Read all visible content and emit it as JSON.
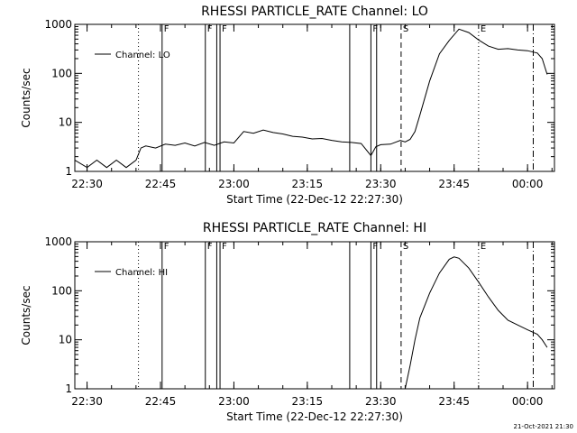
{
  "chart_data": [
    {
      "type": "line",
      "title": "RHESSI PARTICLE_RATE Channel: LO",
      "xlabel": "Start Time (22-Dec-12 22:27:30)",
      "ylabel": "Counts/sec",
      "yscale": "log",
      "ylim": [
        1,
        1000
      ],
      "xlim": [
        "22:27:30",
        "00:05:30"
      ],
      "x_ticks": [
        "22:30",
        "22:45",
        "23:00",
        "23:15",
        "23:30",
        "23:45",
        "00:00"
      ],
      "y_ticks": [
        "1",
        "10",
        "100",
        "1000"
      ],
      "legend": {
        "text": "Channel: LO",
        "placement": "top-left"
      },
      "series": [
        {
          "x": [
            "22:27:30",
            "22:30",
            "22:32",
            "22:34",
            "22:36",
            "22:38",
            "22:40",
            "22:41",
            "22:42",
            "22:44",
            "22:46",
            "22:48",
            "22:50",
            "22:52",
            "22:54",
            "22:56",
            "22:58",
            "23:00",
            "23:02",
            "23:04",
            "23:06",
            "23:08",
            "23:10",
            "23:12",
            "23:14",
            "23:16",
            "23:18",
            "23:20",
            "23:22",
            "23:24",
            "23:26",
            "23:28",
            "23:29",
            "23:30",
            "23:32",
            "23:34",
            "23:35",
            "23:36",
            "23:37",
            "23:38",
            "23:40",
            "23:42",
            "23:44",
            "23:46",
            "23:48",
            "23:50",
            "23:52",
            "23:54",
            "23:56",
            "23:58",
            "00:00",
            "00:02",
            "00:03",
            "00:04"
          ],
          "y": [
            1.7,
            1.2,
            1.7,
            1.2,
            1.7,
            1.2,
            1.7,
            3.0,
            3.3,
            3.0,
            3.6,
            3.4,
            3.8,
            3.3,
            3.9,
            3.4,
            4.0,
            3.8,
            6.5,
            6.0,
            7.0,
            6.2,
            5.8,
            5.2,
            5.0,
            4.6,
            4.7,
            4.3,
            4.0,
            3.9,
            3.7,
            2.1,
            3.2,
            3.5,
            3.6,
            4.3,
            4.0,
            4.5,
            6.5,
            14,
            70,
            250,
            470,
            800,
            680,
            480,
            360,
            310,
            320,
            300,
            290,
            260,
            200,
            95
          ]
        }
      ],
      "annotations": [
        {
          "time": "22:40:30",
          "label": "",
          "style": "dotted"
        },
        {
          "time": "22:45:20",
          "label": "F",
          "style": "solid"
        },
        {
          "time": "22:54:10",
          "label": "F",
          "style": "solid"
        },
        {
          "time": "22:56:30",
          "label": "",
          "style": "solid"
        },
        {
          "time": "22:57:10",
          "label": "F",
          "style": "solid"
        },
        {
          "time": "23:23:40",
          "label": "",
          "style": "solid"
        },
        {
          "time": "23:28:00",
          "label": "F",
          "style": "solid"
        },
        {
          "time": "23:29:10",
          "label": "",
          "style": "solid"
        },
        {
          "time": "23:34:10",
          "label": "S",
          "style": "dashed"
        },
        {
          "time": "23:50:00",
          "label": "E",
          "style": "dotted"
        },
        {
          "time": "00:01:10",
          "label": "",
          "style": "dashdot"
        }
      ]
    },
    {
      "type": "line",
      "title": "RHESSI PARTICLE_RATE Channel: HI",
      "xlabel": "Start Time (22-Dec-12 22:27:30)",
      "ylabel": "Counts/sec",
      "yscale": "log",
      "ylim": [
        1,
        1000
      ],
      "xlim": [
        "22:27:30",
        "00:05:30"
      ],
      "x_ticks": [
        "22:30",
        "22:45",
        "23:00",
        "23:15",
        "23:30",
        "23:45",
        "00:00"
      ],
      "y_ticks": [
        "1",
        "10",
        "100",
        "1000"
      ],
      "legend": {
        "text": "Channel: HI",
        "placement": "top-left"
      },
      "series": [
        {
          "x": [
            "23:35:00",
            "23:36",
            "23:37",
            "23:38",
            "23:40",
            "23:42",
            "23:44",
            "23:45",
            "23:46",
            "23:48",
            "23:50",
            "23:52",
            "23:54",
            "23:56",
            "23:58",
            "00:00",
            "00:02",
            "00:03",
            "00:04"
          ],
          "y": [
            1.0,
            3,
            10,
            28,
            90,
            230,
            440,
            490,
            460,
            290,
            150,
            75,
            40,
            25,
            20,
            16,
            13,
            10,
            7
          ]
        }
      ],
      "annotations": [
        {
          "time": "22:40:30",
          "label": "",
          "style": "dotted"
        },
        {
          "time": "22:45:20",
          "label": "F",
          "style": "solid"
        },
        {
          "time": "22:54:10",
          "label": "F",
          "style": "solid"
        },
        {
          "time": "22:56:30",
          "label": "",
          "style": "solid"
        },
        {
          "time": "22:57:10",
          "label": "F",
          "style": "solid"
        },
        {
          "time": "23:23:40",
          "label": "",
          "style": "solid"
        },
        {
          "time": "23:28:00",
          "label": "F",
          "style": "solid"
        },
        {
          "time": "23:29:10",
          "label": "",
          "style": "solid"
        },
        {
          "time": "23:34:10",
          "label": "S",
          "style": "dashed"
        },
        {
          "time": "23:50:00",
          "label": "E",
          "style": "dotted"
        },
        {
          "time": "00:01:10",
          "label": "",
          "style": "dashdot"
        }
      ]
    }
  ],
  "footer": {
    "timestamp": "21-Oct-2021 21:30"
  }
}
